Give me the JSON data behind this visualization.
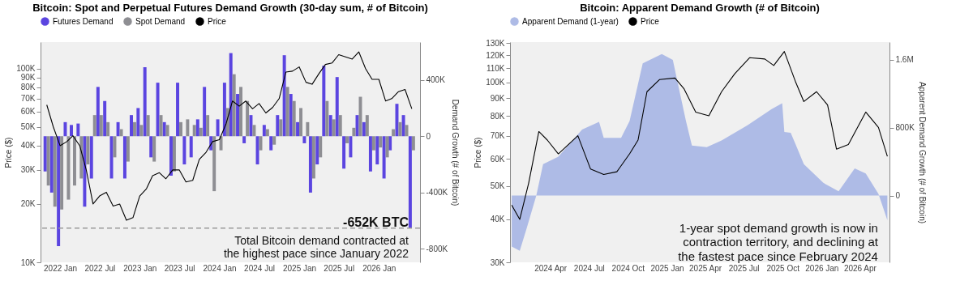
{
  "chart_data": [
    {
      "type": "bar",
      "title": "Bitcoin: Spot and Perpetual Futures Demand Growth (30-day sum, # of Bitcoin)",
      "ylabel": "Price ($)",
      "y2label": "Demand Growth (# of Bitcoin)",
      "legend": "top",
      "log": "y",
      "grid": false,
      "x": [
        "2021-11",
        "2021-12",
        "2022-01",
        "2022-02",
        "2022-03",
        "2022-04",
        "2022-05",
        "2022-06",
        "2022-07",
        "2022-08",
        "2022-09",
        "2022-10",
        "2022-11",
        "2022-12",
        "2023-01",
        "2023-02",
        "2023-03",
        "2023-04",
        "2023-05",
        "2023-06",
        "2023-07",
        "2023-08",
        "2023-09",
        "2023-10",
        "2023-11",
        "2023-12",
        "2024-01",
        "2024-02",
        "2024-03",
        "2024-04",
        "2024-05",
        "2024-06",
        "2024-07",
        "2024-08",
        "2024-09",
        "2024-10",
        "2024-11",
        "2024-12",
        "2025-01",
        "2025-02",
        "2025-03",
        "2025-04",
        "2025-05",
        "2025-06",
        "2025-07",
        "2025-08",
        "2025-09",
        "2025-10",
        "2025-11",
        "2025-12",
        "2026-01",
        "2026-02",
        "2026-03",
        "2026-04",
        "2026-05",
        "2026-06"
      ],
      "series": [
        {
          "name": "Futures Demand",
          "color": "#5b45e0",
          "axis": "y2",
          "values": [
            -250000,
            -400000,
            -780000,
            100000,
            80000,
            90000,
            -500000,
            -300000,
            350000,
            250000,
            -300000,
            100000,
            -300000,
            150000,
            200000,
            490000,
            -150000,
            380000,
            100000,
            -280000,
            380000,
            -200000,
            -150000,
            120000,
            350000,
            -100000,
            120000,
            380000,
            590000,
            300000,
            -50000,
            150000,
            -200000,
            80000,
            -100000,
            150000,
            575000,
            300000,
            100000,
            -50000,
            -400000,
            -200000,
            500000,
            150000,
            420000,
            -230000,
            -150000,
            150000,
            100000,
            -250000,
            -200000,
            -300000,
            -100000,
            230000,
            150000,
            -652000
          ]
        },
        {
          "name": "Spot Demand",
          "color": "#8e8e93",
          "axis": "y2",
          "values": [
            -350000,
            -500000,
            -520000,
            -450000,
            -350000,
            -300000,
            -200000,
            150000,
            150000,
            100000,
            -150000,
            50000,
            -180000,
            100000,
            80000,
            150000,
            -180000,
            150000,
            80000,
            -250000,
            100000,
            120000,
            80000,
            60000,
            150000,
            -390000,
            -100000,
            200000,
            440000,
            350000,
            250000,
            80000,
            -100000,
            50000,
            -60000,
            120000,
            350000,
            250000,
            200000,
            100000,
            -300000,
            -150000,
            250000,
            120000,
            150000,
            -50000,
            60000,
            280000,
            150000,
            -100000,
            -80000,
            -150000,
            50000,
            100000,
            80000,
            -100000
          ]
        },
        {
          "name": "Price",
          "type": "line",
          "color": "#000000",
          "values": [
            65000,
            50000,
            40000,
            42000,
            45000,
            40000,
            30000,
            20000,
            22000,
            23000,
            19500,
            20000,
            16500,
            17000,
            22000,
            24000,
            28000,
            29000,
            27000,
            30000,
            30000,
            26000,
            26500,
            34000,
            37000,
            42000,
            43000,
            52000,
            68000,
            64000,
            68000,
            62000,
            66000,
            59000,
            63000,
            70000,
            96000,
            97000,
            102000,
            85000,
            83000,
            94000,
            105000,
            107000,
            118000,
            115000,
            112000,
            122000,
            100000,
            88000,
            88000,
            68000,
            70000,
            76000,
            78000,
            62000
          ]
        }
      ],
      "xlim": [
        "2021-10-22",
        "2026-06-20"
      ],
      "xticks": [
        {
          "value": "2022-01",
          "label": "2022 Jan"
        },
        {
          "value": "2022-07",
          "label": "2022 Jul"
        },
        {
          "value": "2023-01",
          "label": "2023 Jan"
        },
        {
          "value": "2023-07",
          "label": "2023 Jul"
        },
        {
          "value": "2024-01",
          "label": "2024 Jan"
        },
        {
          "value": "2024-07",
          "label": "2024 Jul"
        },
        {
          "value": "2025-01",
          "label": "2025 Jan"
        },
        {
          "value": "2025-07",
          "label": "2025 Jul"
        },
        {
          "value": "2026-01",
          "label": "2026 Jan"
        }
      ],
      "ylim": [
        10000,
        137000
      ],
      "yticks": [
        {
          "value": 10000,
          "label": "10K"
        },
        {
          "value": 20000,
          "label": "20K"
        },
        {
          "value": 30000,
          "label": "30K"
        },
        {
          "value": 40000,
          "label": "40K"
        },
        {
          "value": 50000,
          "label": "50K"
        },
        {
          "value": 60000,
          "label": "60K"
        },
        {
          "value": 70000,
          "label": "70K"
        },
        {
          "value": 80000,
          "label": "80K"
        },
        {
          "value": 90000,
          "label": "90K"
        },
        {
          "value": 100000,
          "label": "100K"
        }
      ],
      "y2lim": [
        -895000,
        668000
      ],
      "y2ticks": [
        {
          "value": -800000,
          "label": "-800K"
        },
        {
          "value": -400000,
          "label": "-400K"
        },
        0,
        {
          "value": 400000,
          "label": "400K"
        }
      ],
      "ref_lines": [
        {
          "axis": "y2",
          "value": -652000,
          "color": "#999999",
          "line_style": "dashed"
        }
      ],
      "annotations": [
        "-652K BTC",
        "Total Bitcoin demand contracted at the highest pace since January 2022"
      ]
    },
    {
      "type": "area",
      "title": "Bitcoin: Apparent Demand Growth (# of Bitcoin)",
      "ylabel": "Price ($)",
      "y2label": "Apparent Demand Growth (# of Bitcoin)",
      "legend": "top",
      "log": "y",
      "grid": false,
      "series": [
        {
          "name": "Apparent Demand (1-year)",
          "color": "#aebbe6",
          "axis": "y2",
          "x": [
            "2024-01-01",
            "2024-01-20",
            "2024-02-05",
            "2024-02-28",
            "2024-03-15",
            "2024-04-20",
            "2024-06-15",
            "2024-07-25",
            "2024-08-05",
            "2024-09-15",
            "2024-10-05",
            "2024-11-05",
            "2024-12-20",
            "2025-01-15",
            "2025-01-30",
            "2025-02-15",
            "2025-03-01",
            "2025-04-05",
            "2025-05-10",
            "2025-07-10",
            "2025-09-05",
            "2025-09-30",
            "2025-10-05",
            "2025-10-20",
            "2025-11-01",
            "2025-11-20",
            "2026-01-05",
            "2026-02-10",
            "2026-03-20",
            "2026-04-15",
            "2026-05-15",
            "2026-06-05"
          ],
          "values": [
            -600000,
            -650000,
            -390000,
            0,
            370000,
            460000,
            780000,
            870000,
            680000,
            680000,
            880000,
            1560000,
            1670000,
            1600000,
            1250000,
            880000,
            590000,
            570000,
            650000,
            830000,
            1020000,
            1090000,
            750000,
            740000,
            600000,
            370000,
            150000,
            50000,
            320000,
            260000,
            20000,
            -290000
          ]
        },
        {
          "name": "Price",
          "type": "line",
          "color": "#000000",
          "x": [
            "2024-01-01",
            "2024-01-20",
            "2024-02-10",
            "2024-03-05",
            "2024-03-25",
            "2024-04-20",
            "2024-06-05",
            "2024-07-05",
            "2024-08-05",
            "2024-09-05",
            "2024-10-05",
            "2024-10-25",
            "2024-11-15",
            "2024-12-15",
            "2025-01-20",
            "2025-02-10",
            "2025-03-10",
            "2025-04-10",
            "2025-05-10",
            "2025-06-10",
            "2025-07-15",
            "2025-08-20",
            "2025-09-10",
            "2025-10-05",
            "2025-11-01",
            "2025-11-20",
            "2025-12-20",
            "2026-01-15",
            "2026-02-05",
            "2026-03-05",
            "2026-04-15",
            "2026-05-15",
            "2026-06-05"
          ],
          "values": [
            44000,
            40000,
            51000,
            72000,
            68000,
            62000,
            70000,
            56000,
            54000,
            55000,
            62000,
            68000,
            94000,
            102000,
            103000,
            96000,
            82000,
            80000,
            94000,
            106000,
            118000,
            117000,
            112000,
            123000,
            100000,
            88000,
            94000,
            86000,
            64000,
            66000,
            82000,
            74000,
            61000
          ]
        }
      ],
      "xlim": [
        "2023-12-28",
        "2026-06-10"
      ],
      "xticks": [
        {
          "value": "2024-04",
          "label": "2024 Apr"
        },
        {
          "value": "2024-07",
          "label": "2024 Jul"
        },
        {
          "value": "2024-10",
          "label": "2024 Oct"
        },
        {
          "value": "2025-01",
          "label": "2025 Jan"
        },
        {
          "value": "2025-04",
          "label": "2025 Apr"
        },
        {
          "value": "2025-07",
          "label": "2025 Jul"
        },
        {
          "value": "2025-10",
          "label": "2025 Oct"
        },
        {
          "value": "2026-01",
          "label": "2026 Jan"
        },
        {
          "value": "2026-04",
          "label": "2026 Apr"
        }
      ],
      "ylim": [
        30000,
        131000
      ],
      "yticks": [
        {
          "value": 30000,
          "label": "30K"
        },
        {
          "value": 40000,
          "label": "40K"
        },
        {
          "value": 50000,
          "label": "50K"
        },
        {
          "value": 60000,
          "label": "60K"
        },
        {
          "value": 70000,
          "label": "70K"
        },
        {
          "value": 80000,
          "label": "80K"
        },
        {
          "value": 90000,
          "label": "90K"
        },
        {
          "value": 100000,
          "label": "100K"
        },
        {
          "value": 110000,
          "label": "110K"
        },
        {
          "value": 120000,
          "label": "120K"
        },
        {
          "value": 130000,
          "label": "130K"
        }
      ],
      "y2lim": [
        -787000,
        1810000
      ],
      "y2ticks": [
        0,
        {
          "value": 800000,
          "label": "800K"
        },
        {
          "value": 1600000,
          "label": "1.6M"
        }
      ],
      "annotations": [
        "1-year spot demand growth is now in contraction territory, and declining at the fastest pace since February 2024"
      ]
    }
  ]
}
